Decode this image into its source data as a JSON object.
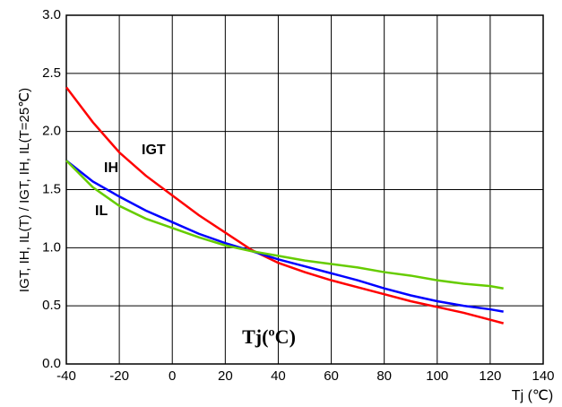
{
  "chart_data": {
    "type": "line",
    "y_label": "IGT, IH, IL(T) / IGT, IH, IL(T=25℃)",
    "x_label": "Tj (℃)",
    "annotation": "Tj(ºC)",
    "x": [
      -40,
      -30,
      -20,
      -10,
      0,
      10,
      20,
      30,
      40,
      50,
      60,
      70,
      80,
      90,
      100,
      110,
      120,
      125
    ],
    "series": [
      {
        "name": "IGT",
        "color": "#ff0000",
        "values": [
          2.38,
          2.08,
          1.82,
          1.62,
          1.45,
          1.28,
          1.13,
          0.98,
          0.87,
          0.79,
          0.72,
          0.66,
          0.6,
          0.54,
          0.49,
          0.44,
          0.38,
          0.35
        ]
      },
      {
        "name": "IH",
        "color": "#0000ff",
        "values": [
          1.75,
          1.57,
          1.44,
          1.32,
          1.22,
          1.12,
          1.04,
          0.97,
          0.9,
          0.84,
          0.78,
          0.72,
          0.65,
          0.59,
          0.54,
          0.5,
          0.47,
          0.45
        ]
      },
      {
        "name": "IL",
        "color": "#66cc00",
        "values": [
          1.75,
          1.52,
          1.36,
          1.25,
          1.17,
          1.09,
          1.02,
          0.97,
          0.93,
          0.89,
          0.86,
          0.83,
          0.79,
          0.76,
          0.72,
          0.69,
          0.67,
          0.65
        ]
      }
    ],
    "xlim": [
      -40,
      140
    ],
    "xticks": [
      -40,
      -20,
      0,
      20,
      40,
      60,
      80,
      100,
      120,
      140
    ],
    "ylim": [
      0,
      3
    ],
    "yticks": [
      {
        "value": 0,
        "label": "0.0"
      },
      {
        "value": 0.5,
        "label": "0.5"
      },
      {
        "value": 1,
        "label": "1.0"
      },
      {
        "value": 1.5,
        "label": "1.5"
      },
      {
        "value": 2,
        "label": "2.0"
      },
      {
        "value": 2.5,
        "label": "2.5"
      },
      {
        "value": 3,
        "label": "3.0"
      }
    ],
    "grid": true
  }
}
